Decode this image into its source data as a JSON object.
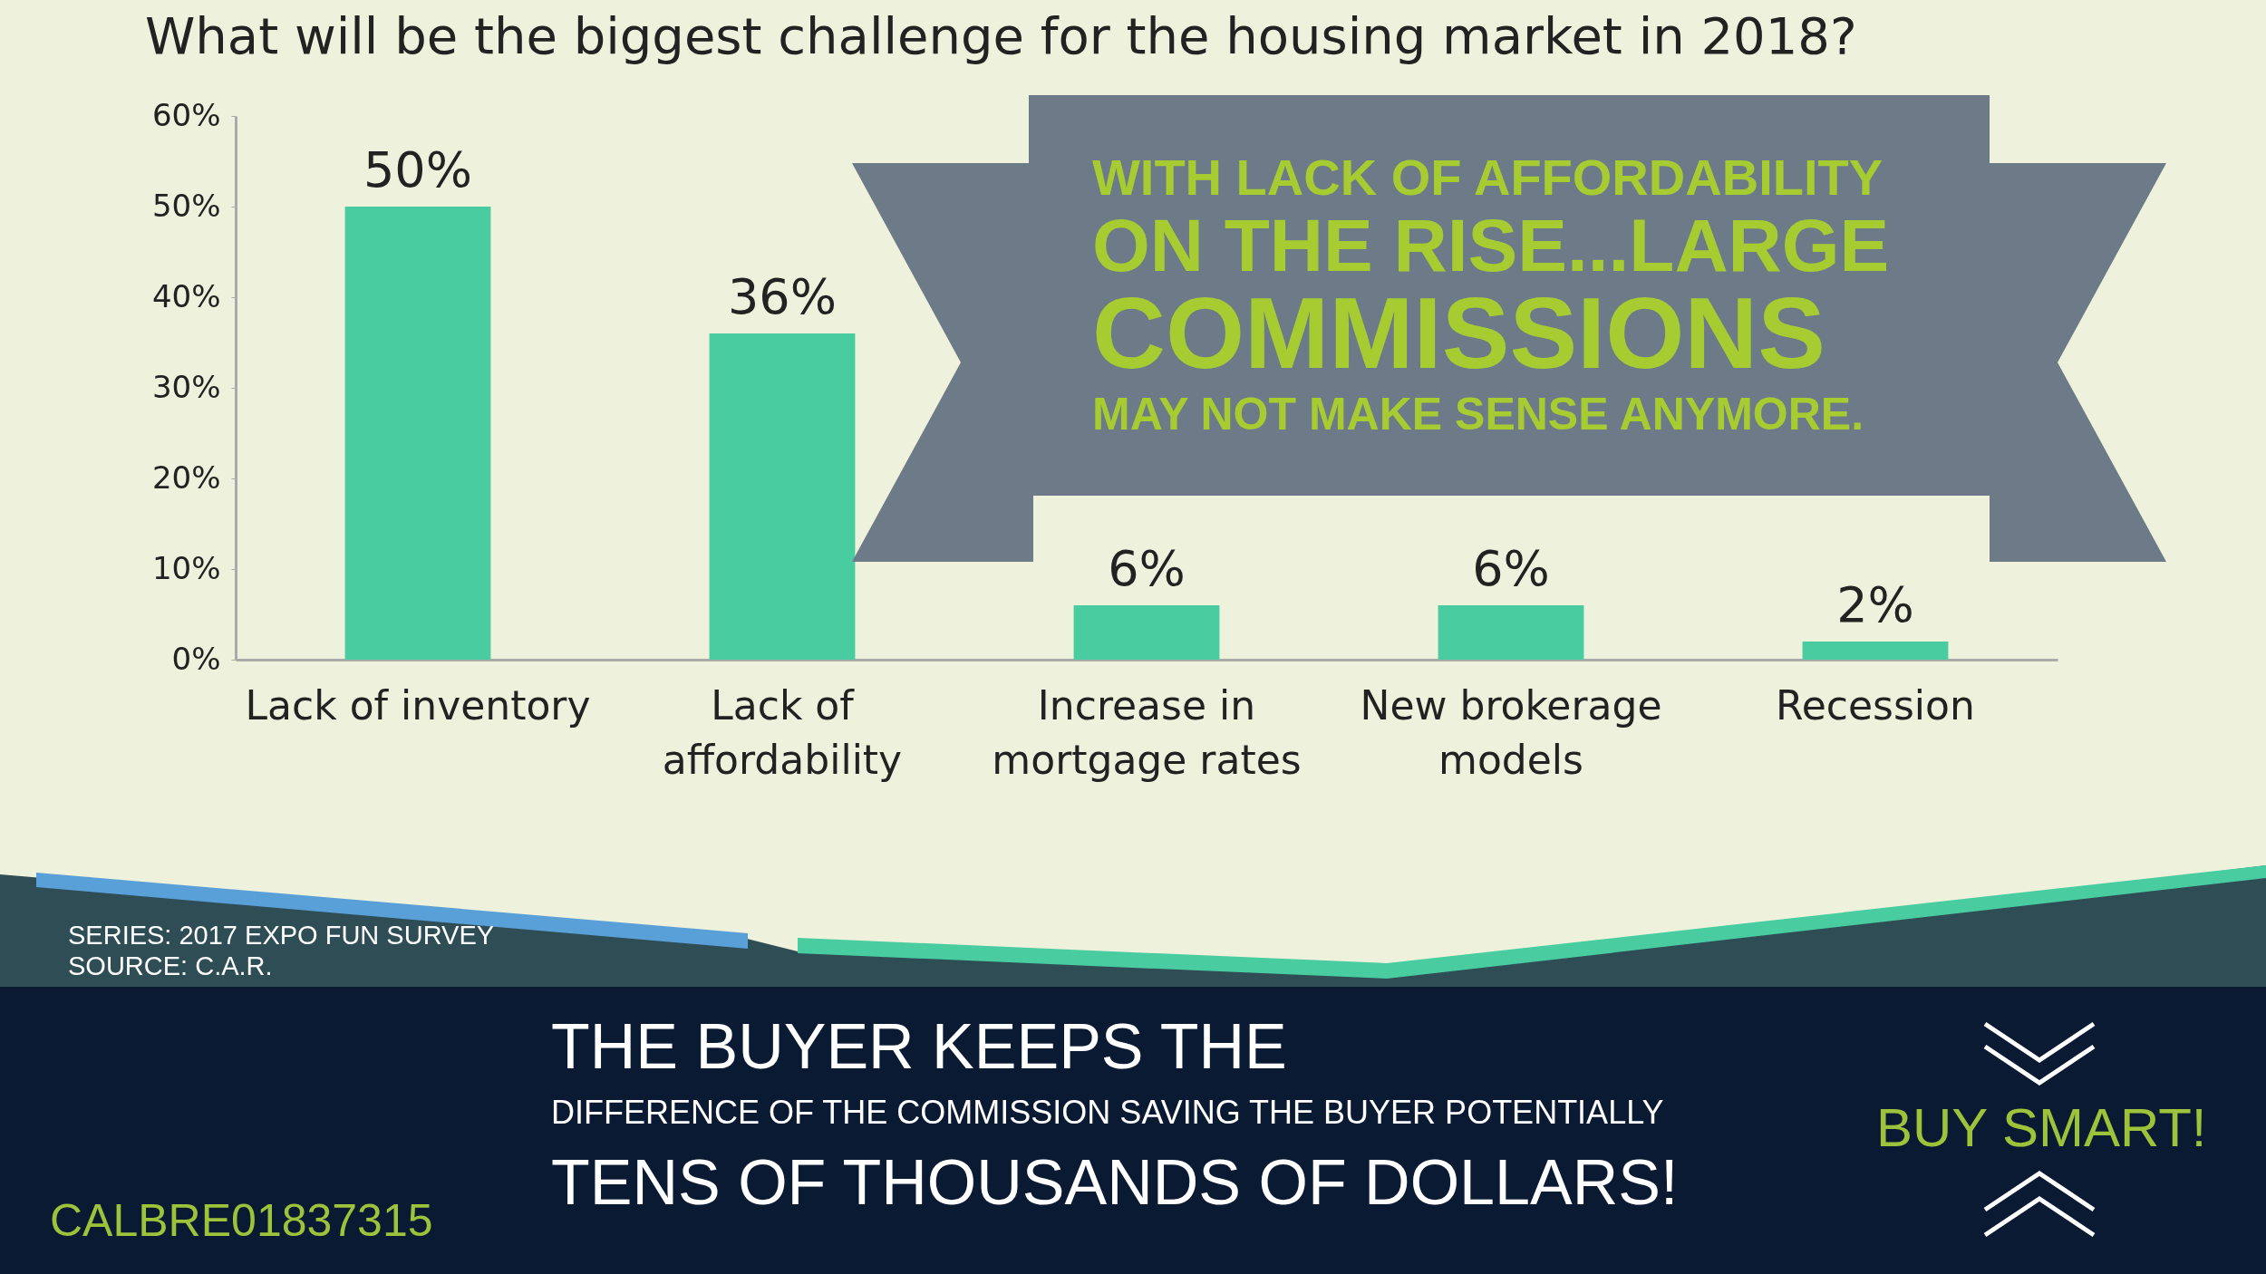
{
  "chart_data": {
    "type": "bar",
    "title": "What will be the biggest challenge for the housing market in 2018?",
    "categories": [
      "Lack of inventory",
      "Lack of affordability",
      "Increase in mortgage rates",
      "New brokerage models",
      "Recession"
    ],
    "values": [
      50,
      36,
      6,
      6,
      2
    ],
    "value_labels": [
      "50%",
      "36%",
      "6%",
      "6%",
      "2%"
    ],
    "color": "#48cca0",
    "ylim": [
      0,
      60
    ],
    "yticks": [
      {
        "value": 0,
        "label": "0%"
      },
      {
        "value": 10,
        "label": "10%"
      },
      {
        "value": 20,
        "label": "20%"
      },
      {
        "value": 30,
        "label": "30%"
      },
      {
        "value": 40,
        "label": "40%"
      },
      {
        "value": 50,
        "label": "50%"
      },
      {
        "value": 60,
        "label": "60%"
      }
    ],
    "grid": false,
    "annotations": [
      "WITH LACK OF AFFORDABILITY",
      "ON THE RISE...LARGE",
      "COMMISSIONS",
      "MAY NOT MAKE SENSE ANYMORE.",
      "SERIES: 2017 EXPO FUN SURVEY",
      "SOURCE: C.A.R.",
      "THE BUYER KEEPS THE",
      "DIFFERENCE OF THE COMMISSION SAVING THE BUYER POTENTIALLY",
      "TENS OF THOUSANDS OF DOLLARS!",
      "CALBRE01837315",
      "BUY SMART!"
    ]
  }
}
